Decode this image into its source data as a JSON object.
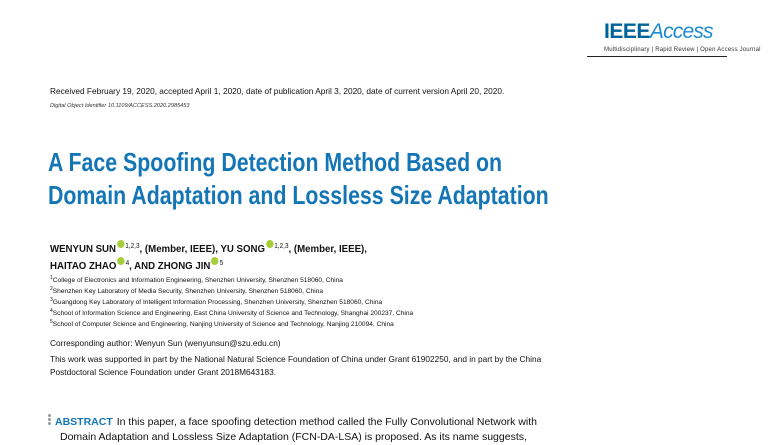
{
  "journal": {
    "logo_bold": "IEEE",
    "logo_italic": "Access",
    "tagline": "Multidisciplinary | Rapid Review | Open Access Journal"
  },
  "received_line": "Received February 19, 2020, accepted April 1, 2020, date of publication April 3, 2020, date of current version April 20, 2020.",
  "doi_line": "Digital Object Identifier 10.1109/ACCESS.2020.2985453",
  "title_lines": [
    "A Face Spoofing Detection Method Based on",
    "Domain Adaptation and Lossless Size Adaptation"
  ],
  "authors": [
    {
      "name": "WENYUN SUN",
      "aff": "1,2,3",
      "suffix": ", (Member, IEEE), "
    },
    {
      "name": "YU SONG",
      "aff": "1,2,3",
      "suffix": ", (Member, IEEE),"
    },
    {
      "name": "HAITAO ZHAO",
      "aff": "4",
      "suffix": ", AND "
    },
    {
      "name": "ZHONG JIN",
      "aff": "5",
      "suffix": ""
    }
  ],
  "affiliations": [
    {
      "num": "1",
      "text": "College of Electronics and Information Engineering, Shenzhen University, Shenzhen 518060, China"
    },
    {
      "num": "2",
      "text": "Shenzhen Key Laboratory of Media Security, Shenzhen University, Shenzhen 518060, China"
    },
    {
      "num": "3",
      "text": "Guangdong Key Laboratory of Intelligent Information Processing, Shenzhen University, Shenzhen 518060, China"
    },
    {
      "num": "4",
      "text": "School of Information Science and Engineering, East China University of Science and Technology, Shanghai 200237, China"
    },
    {
      "num": "5",
      "text": "School of Computer Science and Engineering, Nanjing University of Science and Technology, Nanjing 210094, China"
    }
  ],
  "corresponding": "Corresponding author: Wenyun Sun (wenyunsun@szu.edu.cn)",
  "funding_lines": [
    "This work was supported in part by the National Natural Science Foundation of China under Grant 61902250, and in part by the China",
    "Postdoctoral Science Foundation under Grant 2018M643183."
  ],
  "abstract": {
    "heading": "ABSTRACT",
    "lines": [
      "In this paper, a face spoofing detection method called the Fully Convolutional Network with",
      "Domain Adaptation and Lossless Size Adaptation (FCN-DA-LSA) is proposed. As its name suggests,"
    ]
  },
  "colors": {
    "title": "#1576b6",
    "ieee": "#00629b",
    "orcid": "#a6ce39"
  }
}
